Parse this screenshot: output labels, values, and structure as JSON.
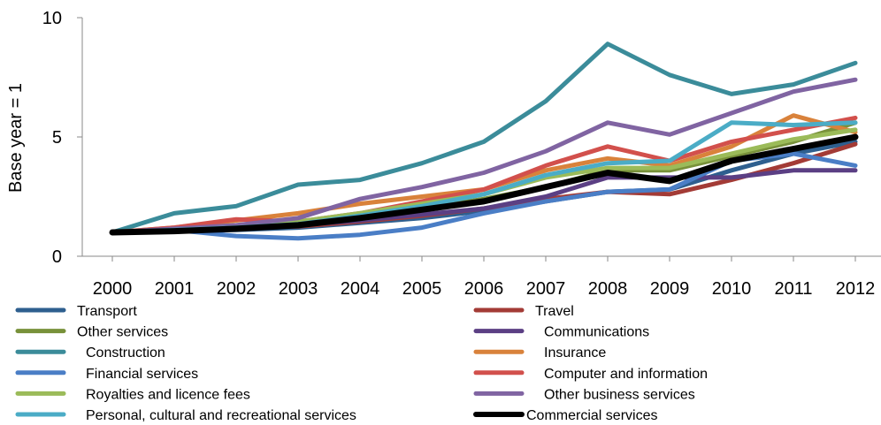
{
  "chart_data": {
    "type": "line",
    "title": "",
    "xlabel": "",
    "ylabel": "Base year = 1",
    "ylim": [
      0,
      10
    ],
    "yticks": [
      0,
      5,
      10
    ],
    "grid": false,
    "legend_position": "bottom",
    "categories": [
      "2000",
      "2001",
      "2002",
      "2003",
      "2004",
      "2005",
      "2006",
      "2007",
      "2008",
      "2009",
      "2010",
      "2011",
      "2012"
    ],
    "series": [
      {
        "name": "Transport",
        "color": "#2E5F8F",
        "values": [
          1.0,
          1.05,
          1.1,
          1.2,
          1.4,
          1.6,
          1.9,
          2.3,
          2.7,
          2.8,
          3.6,
          4.3,
          4.8
        ]
      },
      {
        "name": "Travel",
        "color": "#A33B36",
        "values": [
          1.0,
          1.1,
          1.2,
          1.25,
          1.45,
          1.7,
          2.0,
          2.4,
          2.7,
          2.6,
          3.2,
          3.9,
          4.7
        ]
      },
      {
        "name": "Other services",
        "color": "#78913A",
        "values": [
          1.0,
          1.1,
          1.2,
          1.35,
          1.7,
          2.0,
          2.4,
          2.9,
          3.6,
          3.6,
          4.2,
          4.8,
          5.6
        ]
      },
      {
        "name": "Communications",
        "color": "#5B3F84",
        "values": [
          1.0,
          1.1,
          1.2,
          1.3,
          1.5,
          1.75,
          2.0,
          2.5,
          3.3,
          3.3,
          3.3,
          3.6,
          3.6
        ]
      },
      {
        "name": "Construction",
        "color": "#3B8C9A",
        "values": [
          1.0,
          1.8,
          2.1,
          3.0,
          3.2,
          3.9,
          4.8,
          6.5,
          8.9,
          7.6,
          6.8,
          7.2,
          8.1
        ]
      },
      {
        "name": "Insurance",
        "color": "#D9823B",
        "values": [
          1.0,
          1.2,
          1.5,
          1.8,
          2.2,
          2.5,
          2.8,
          3.6,
          4.1,
          3.8,
          4.6,
          5.9,
          5.2
        ]
      },
      {
        "name": "Financial services",
        "color": "#4A7EC6",
        "values": [
          1.0,
          1.1,
          0.85,
          0.75,
          0.9,
          1.2,
          1.8,
          2.3,
          2.7,
          2.8,
          4.0,
          4.3,
          3.8
        ]
      },
      {
        "name": "Computer and information",
        "color": "#D2504C",
        "values": [
          1.0,
          1.2,
          1.55,
          1.45,
          1.8,
          2.3,
          2.8,
          3.8,
          4.6,
          4.0,
          4.8,
          5.3,
          5.8
        ]
      },
      {
        "name": "Royalties and licence fees",
        "color": "#9BBB59",
        "values": [
          1.0,
          1.1,
          1.25,
          1.45,
          1.8,
          2.2,
          2.6,
          3.3,
          3.7,
          3.7,
          4.3,
          4.9,
          5.3
        ]
      },
      {
        "name": "Other business services",
        "color": "#8064A2",
        "values": [
          1.0,
          1.15,
          1.3,
          1.6,
          2.4,
          2.9,
          3.5,
          4.4,
          5.6,
          5.1,
          6.0,
          6.9,
          7.4
        ]
      },
      {
        "name": "Personal, cultural and recreational services",
        "color": "#4BACC6",
        "values": [
          1.0,
          1.1,
          1.2,
          1.35,
          1.7,
          2.1,
          2.6,
          3.4,
          3.9,
          4.0,
          5.6,
          5.5,
          5.6
        ]
      },
      {
        "name": "Commercial services",
        "color": "#000000",
        "values": [
          1.0,
          1.05,
          1.15,
          1.3,
          1.6,
          1.95,
          2.3,
          2.9,
          3.5,
          3.15,
          4.0,
          4.5,
          5.0
        ]
      }
    ]
  }
}
